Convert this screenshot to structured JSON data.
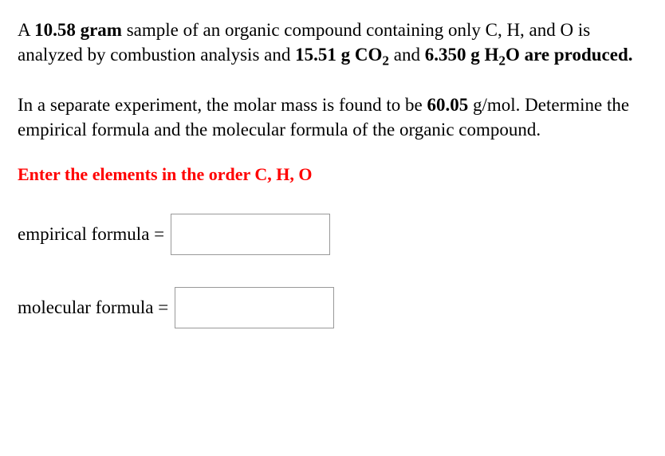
{
  "paragraph1": {
    "pre1": "A ",
    "mass_sample": "10.58 gram",
    "mid1": " sample of an organic compound containing only C, H, and O is analyzed by combustion analysis and ",
    "mass_co2": "15.51",
    "unit_co2": " g CO",
    "sub2": "2",
    "and_text": " and ",
    "mass_h2o": "6.350",
    "unit_h2o_pre": " g H",
    "unit_h2o_post": "O are produced."
  },
  "paragraph2": {
    "pre": "In a separate experiment, the molar mass is found to be ",
    "molar_mass": "60.05",
    "post": " g/mol. Determine the empirical formula and the molecular formula of the organic compound."
  },
  "instruction": "Enter the elements in the order C, H, O",
  "empirical": {
    "label": "empirical formula ="
  },
  "molecular": {
    "label": "molecular formula ="
  },
  "style": {
    "text_color": "#000000",
    "instruction_color": "#ff0000",
    "background": "#ffffff",
    "input_border": "#999999",
    "body_fontsize": 23,
    "instruction_fontsize": 22,
    "input_width": 200,
    "input_height": 52
  }
}
